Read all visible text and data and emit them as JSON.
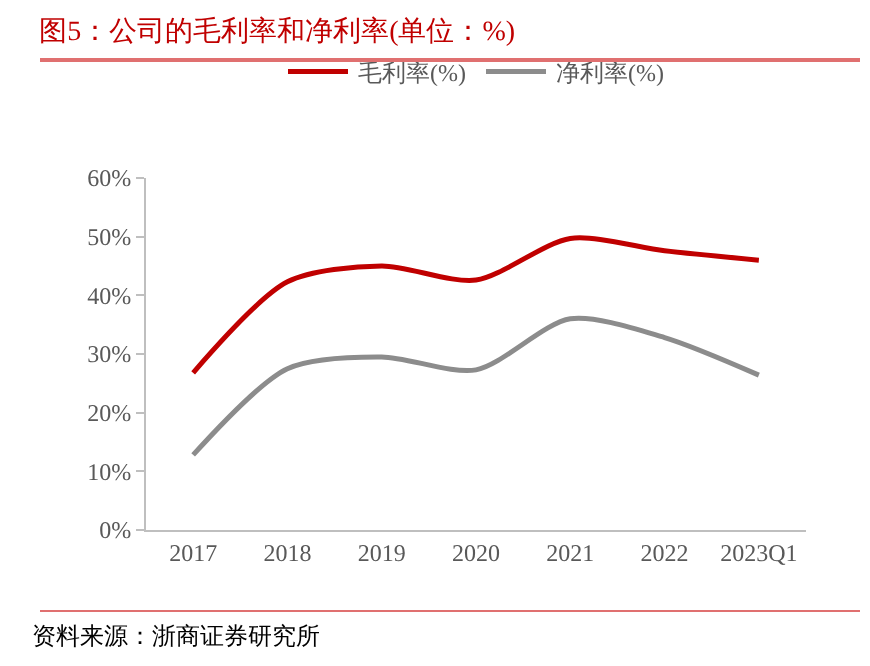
{
  "chart_data": {
    "type": "line",
    "title": "图5：公司的毛利率和净利率(单位：%)",
    "categories": [
      "2017",
      "2018",
      "2019",
      "2020",
      "2021",
      "2022",
      "2023Q1"
    ],
    "series": [
      {
        "name": "毛利率(%)",
        "color": "#c00000",
        "values": [
          26.8,
          42.3,
          45.0,
          42.6,
          49.7,
          47.6,
          46.0
        ]
      },
      {
        "name": "净利率(%)",
        "color": "#8c8c8c",
        "values": [
          12.8,
          27.5,
          29.5,
          27.3,
          36.0,
          32.8,
          26.4
        ]
      }
    ],
    "ylim": [
      0,
      60
    ],
    "yticks": [
      {
        "value": 0,
        "label": "0%"
      },
      {
        "value": 10,
        "label": "10%"
      },
      {
        "value": 20,
        "label": "20%"
      },
      {
        "value": 30,
        "label": "30%"
      },
      {
        "value": 40,
        "label": "40%"
      },
      {
        "value": 50,
        "label": "50%"
      },
      {
        "value": 60,
        "label": "60%"
      }
    ],
    "grid": false,
    "legend": "top",
    "marker": "none",
    "line_style": "solid",
    "annotations": [
      "资料来源：浙商证券研究所"
    ]
  }
}
